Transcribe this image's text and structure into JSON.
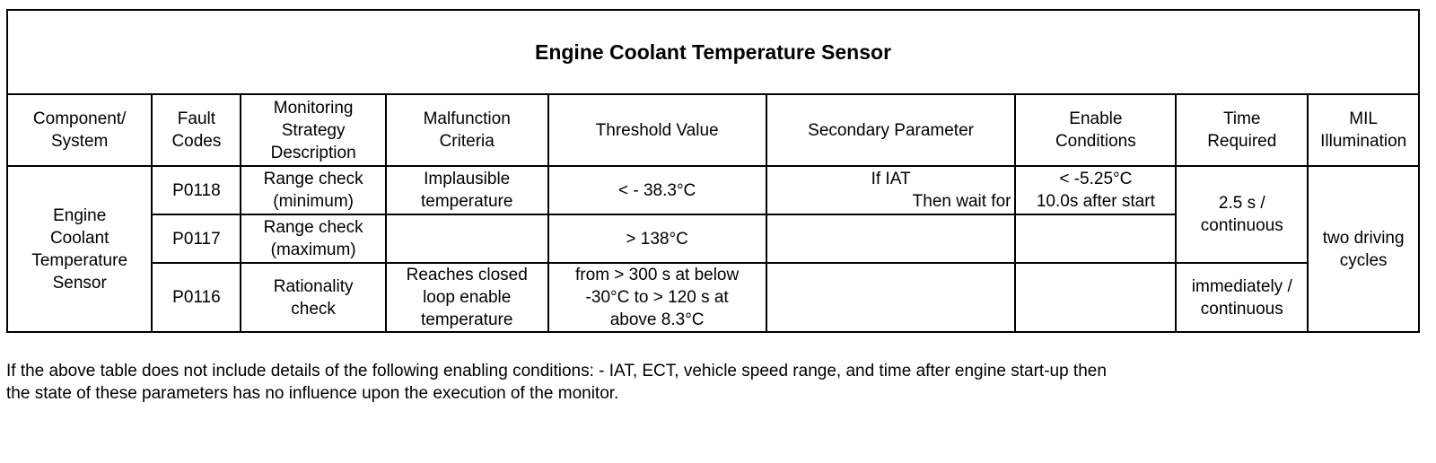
{
  "title": "Engine Coolant Temperature Sensor",
  "headers": [
    [
      "Component/",
      "System"
    ],
    [
      "Fault",
      "Codes"
    ],
    [
      "Monitoring",
      "Strategy",
      "Description"
    ],
    [
      "Malfunction",
      "Criteria"
    ],
    [
      "Threshold Value"
    ],
    [
      "Secondary Parameter"
    ],
    [
      "Enable",
      "Conditions"
    ],
    [
      "Time",
      "Required"
    ],
    [
      "MIL",
      "Illumination"
    ]
  ],
  "component": [
    "Engine",
    "Coolant",
    "Temperature",
    "Sensor"
  ],
  "rows": [
    {
      "code": "P0118",
      "strategy": [
        "Range check",
        "(minimum)"
      ],
      "criteria": [
        "Implausible",
        "temperature"
      ],
      "threshold": [
        "< - 38.3°C"
      ],
      "secondary": [
        "If IAT",
        "Then wait for"
      ],
      "enable": [
        "< -5.25°C",
        "10.0s after start"
      ]
    },
    {
      "code": "P0117",
      "strategy": [
        "Range check",
        "(maximum)"
      ],
      "criteria": [],
      "threshold": [
        "> 138°C"
      ],
      "secondary": [],
      "enable": []
    },
    {
      "code": "P0116",
      "strategy": [
        "Rationality",
        "check"
      ],
      "criteria": [
        "Reaches closed",
        "loop enable",
        "temperature"
      ],
      "threshold": [
        "from > 300 s at below",
        "-30°C to > 120 s at",
        "above 8.3°C"
      ],
      "secondary": [],
      "enable": []
    }
  ],
  "time_required": {
    "first": [
      "2.5 s /",
      "continuous"
    ],
    "second": [
      "immediately /",
      "continuous"
    ]
  },
  "mil": [
    "two driving",
    "cycles"
  ],
  "footnote": [
    "If the above table does not include details of the following enabling conditions: - IAT, ECT, vehicle speed range, and time after engine start-up then",
    "the state of these parameters has no influence upon the execution of the monitor."
  ]
}
